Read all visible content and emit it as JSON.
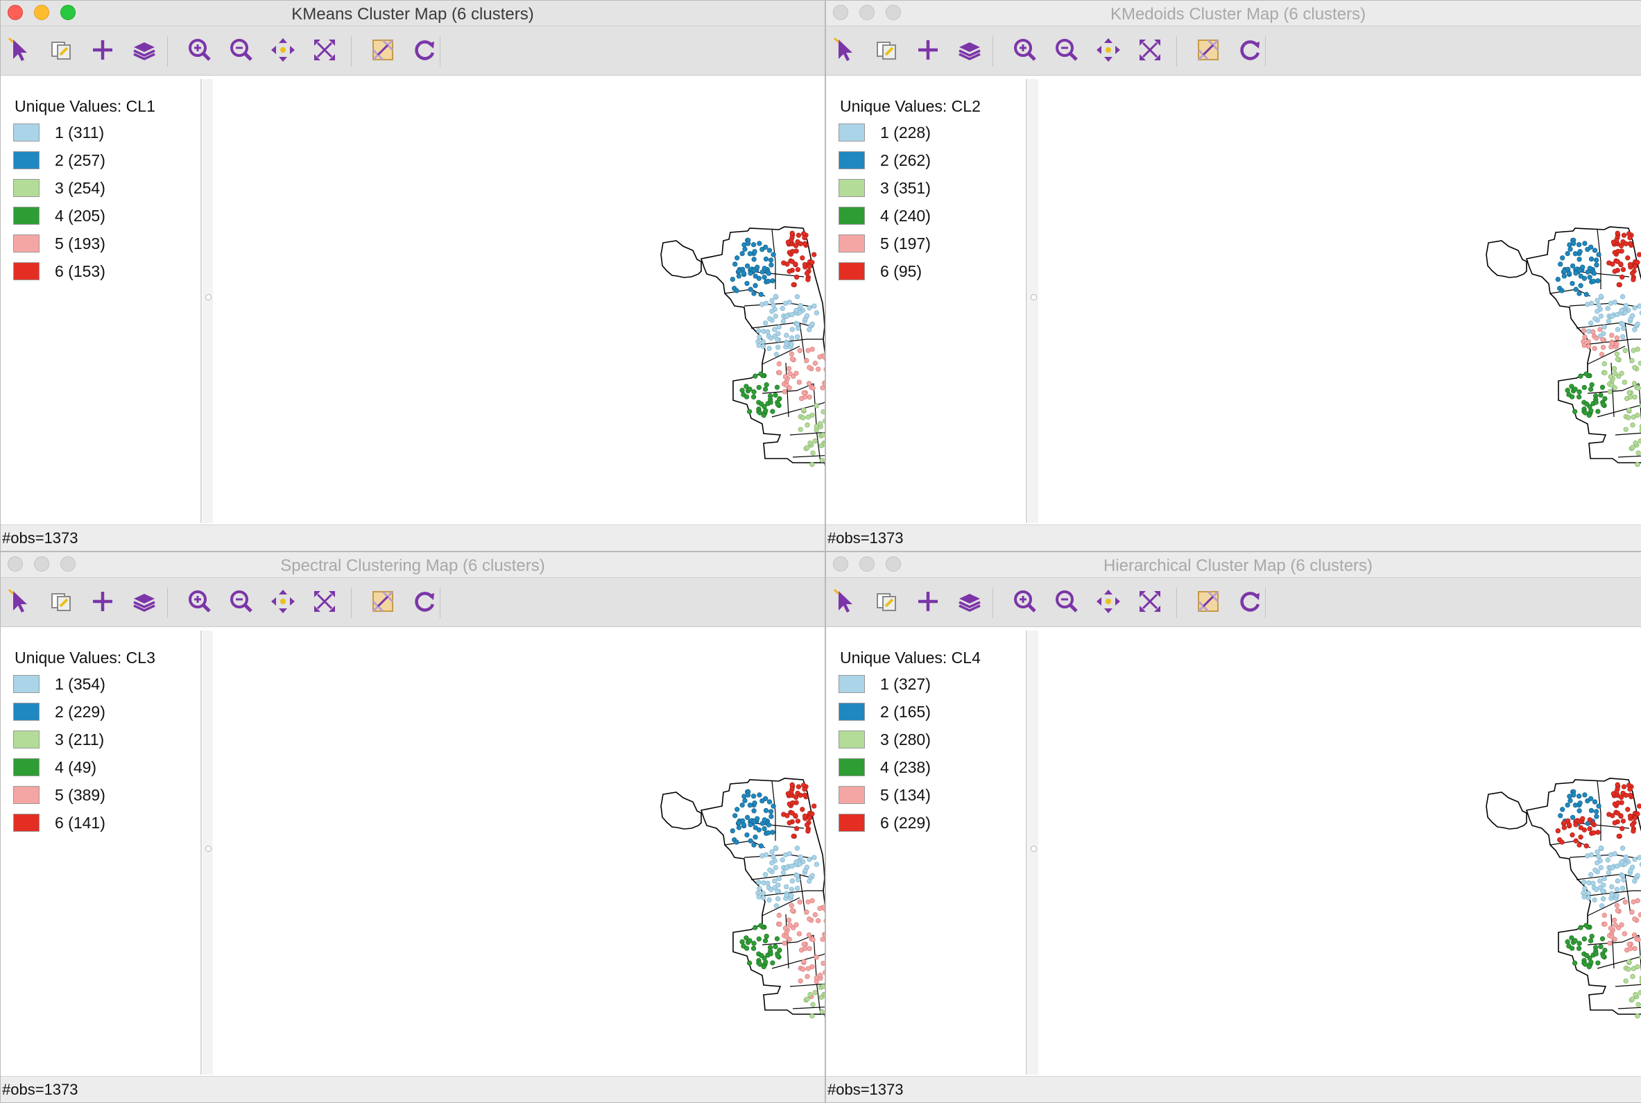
{
  "windows": [
    {
      "title": "KMeans Cluster Map (6 clusters)",
      "active": true,
      "legend_title": "Unique Values: CL1",
      "items": [
        {
          "label": "1 (311)",
          "color": "#abd4e8"
        },
        {
          "label": "2 (257)",
          "color": "#1f88c0"
        },
        {
          "label": "3 (254)",
          "color": "#b3dc98"
        },
        {
          "label": "4 (205)",
          "color": "#2e9e34"
        },
        {
          "label": "5 (193)",
          "color": "#f4a6a4"
        },
        {
          "label": "6 (153)",
          "color": "#e42e23"
        }
      ],
      "status": "#obs=1373"
    },
    {
      "title": "KMedoids Cluster Map (6 clusters)",
      "active": false,
      "legend_title": "Unique Values: CL2",
      "items": [
        {
          "label": "1 (228)",
          "color": "#abd4e8"
        },
        {
          "label": "2 (262)",
          "color": "#1f88c0"
        },
        {
          "label": "3 (351)",
          "color": "#b3dc98"
        },
        {
          "label": "4 (240)",
          "color": "#2e9e34"
        },
        {
          "label": "5 (197)",
          "color": "#f4a6a4"
        },
        {
          "label": "6 (95)",
          "color": "#e42e23"
        }
      ],
      "status": "#obs=1373"
    },
    {
      "title": "Spectral Clustering Map (6 clusters)",
      "active": false,
      "legend_title": "Unique Values: CL3",
      "items": [
        {
          "label": "1 (354)",
          "color": "#abd4e8"
        },
        {
          "label": "2 (229)",
          "color": "#1f88c0"
        },
        {
          "label": "3 (211)",
          "color": "#b3dc98"
        },
        {
          "label": "4 (49)",
          "color": "#2e9e34"
        },
        {
          "label": "5 (389)",
          "color": "#f4a6a4"
        },
        {
          "label": "6 (141)",
          "color": "#e42e23"
        }
      ],
      "status": "#obs=1373"
    },
    {
      "title": "Hierarchical Cluster Map (6 clusters)",
      "active": false,
      "legend_title": "Unique Values: CL4",
      "items": [
        {
          "label": "1 (327)",
          "color": "#abd4e8"
        },
        {
          "label": "2 (165)",
          "color": "#1f88c0"
        },
        {
          "label": "3 (280)",
          "color": "#b3dc98"
        },
        {
          "label": "4 (238)",
          "color": "#2e9e34"
        },
        {
          "label": "5 (134)",
          "color": "#f4a6a4"
        },
        {
          "label": "6 (229)",
          "color": "#e42e23"
        }
      ],
      "status": "#obs=1373"
    }
  ],
  "toolbar_icons": [
    "select-icon",
    "copy-map-icon",
    "add-icon",
    "layers-icon",
    "zoom-in-icon",
    "zoom-out-icon",
    "pan-icon",
    "full-extent-icon",
    "basemap-icon",
    "refresh-icon"
  ],
  "accent_color": "#7b35a8"
}
